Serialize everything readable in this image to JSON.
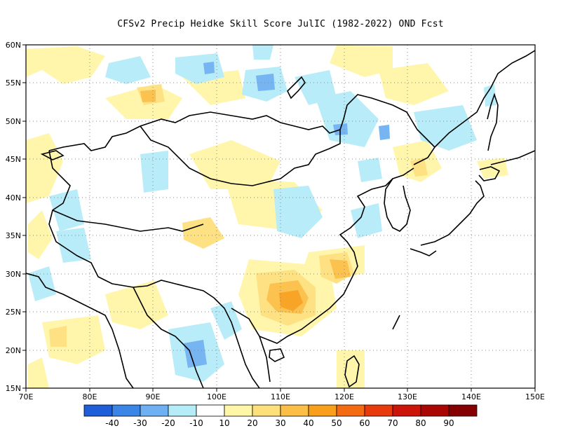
{
  "title": "CFSv2 Precip Heidke Skill Score JulIC (1982-2022) OND Fcst",
  "map": {
    "lon_labels": [
      "70E",
      "80E",
      "90E",
      "100E",
      "110E",
      "120E",
      "130E",
      "140E",
      "150E"
    ],
    "lat_labels": [
      "60N",
      "55N",
      "50N",
      "45N",
      "40N",
      "35N",
      "30N",
      "25N",
      "20N",
      "15N"
    ]
  },
  "colorbar": {
    "colors": [
      "#1e5ed8",
      "#3a85e6",
      "#6fb0f2",
      "#b4ecf8",
      "#ffffff",
      "#fff6a8",
      "#fde07c",
      "#fbbf47",
      "#f8a01c",
      "#f46a10",
      "#e93a0c",
      "#cc1408",
      "#aa0604",
      "#850000"
    ],
    "labels": [
      "-40",
      "-30",
      "-20",
      "-10",
      "10",
      "20",
      "30",
      "40",
      "50",
      "60",
      "70",
      "80",
      "90"
    ]
  }
}
